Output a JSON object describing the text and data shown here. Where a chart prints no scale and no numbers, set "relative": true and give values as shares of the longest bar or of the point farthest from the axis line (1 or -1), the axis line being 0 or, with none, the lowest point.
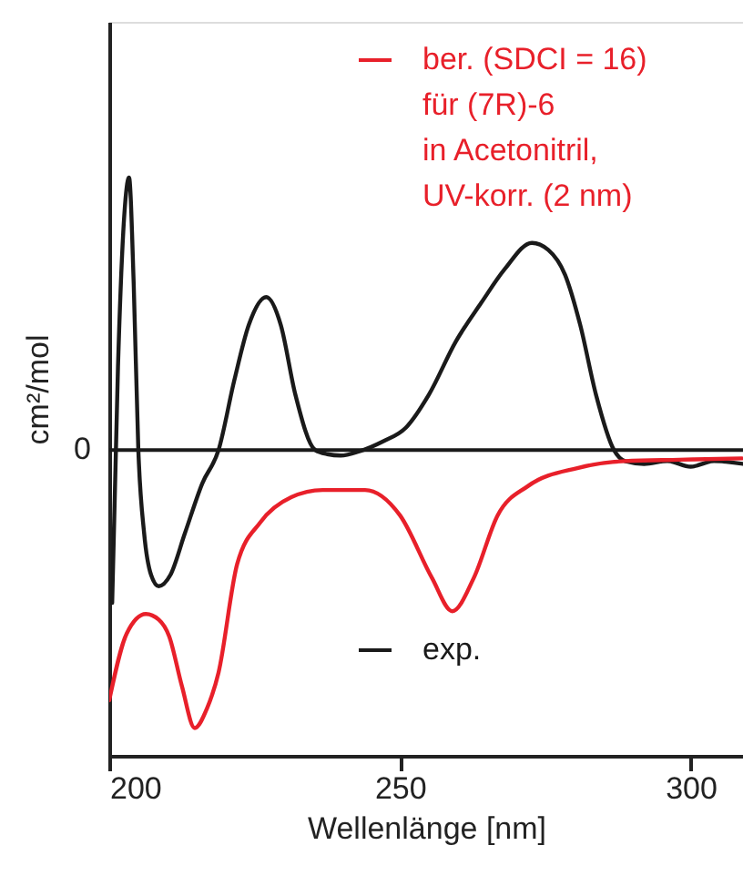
{
  "chart_data": {
    "type": "line",
    "relative": true,
    "xlabel": "Wellenlänge [nm]",
    "ylabel": "cm²/mol",
    "xlim": [
      200,
      309
    ],
    "xticks": [
      200,
      250,
      300
    ],
    "tick_labels": "x",
    "grid": false,
    "legend": "top right",
    "line_style": "solid",
    "marker": "none",
    "ref_lines": [
      {
        "axis": "y",
        "value": 0,
        "label": "0",
        "color": "#1a1a1a"
      }
    ],
    "series": [
      {
        "name": "exp.",
        "color": "#1a1a1a",
        "x": [
          200.5,
          201.5,
          202.6,
          203.4,
          204.2,
          205.0,
          206.0,
          207.2,
          208.5,
          210.5,
          213.0,
          216.0,
          218.8,
          221.5,
          224.0,
          227.0,
          229.5,
          232.0,
          235.4,
          237.5,
          239.8,
          243.0,
          247.0,
          251.0,
          255.0,
          259.6,
          264.0,
          268.0,
          272.7,
          275.5,
          278.4,
          281.0,
          283.7,
          286.8,
          288.7,
          292.0,
          296.0,
          300.0,
          304.0,
          309.0
        ],
        "values": [
          -0.55,
          0.3,
          0.85,
          0.98,
          0.6,
          0.0,
          -0.3,
          -0.45,
          -0.49,
          -0.45,
          -0.3,
          -0.12,
          0.0,
          0.25,
          0.45,
          0.55,
          0.45,
          0.2,
          0.0,
          -0.015,
          -0.02,
          -0.005,
          0.03,
          0.08,
          0.2,
          0.39,
          0.53,
          0.65,
          0.745,
          0.72,
          0.63,
          0.45,
          0.2,
          0.0,
          -0.04,
          -0.05,
          -0.04,
          -0.06,
          -0.04,
          -0.05
        ]
      },
      {
        "name": "ber. (SDCI = 16)\nfür (7R)-6\nin Acetonitril,\nUV-korr. (2 nm)",
        "color": "#e8202a",
        "x": [
          200.0,
          203.0,
          206.3,
          208.5,
          210.3,
          212.5,
          214.7,
          216.8,
          218.8,
          222.0,
          226.0,
          231.3,
          236.7,
          244.0,
          250.0,
          255.5,
          259.0,
          262.7,
          266.8,
          272.0,
          280.5,
          288.7,
          298.0,
          308.8
        ],
        "values": [
          -0.9,
          -0.66,
          -0.59,
          -0.61,
          -0.67,
          -0.85,
          -1.0,
          -0.93,
          -0.8,
          -0.41,
          -0.26,
          -0.17,
          -0.144,
          -0.144,
          -0.235,
          -0.46,
          -0.58,
          -0.46,
          -0.235,
          -0.13,
          -0.065,
          -0.04,
          -0.035,
          -0.03
        ]
      }
    ]
  }
}
